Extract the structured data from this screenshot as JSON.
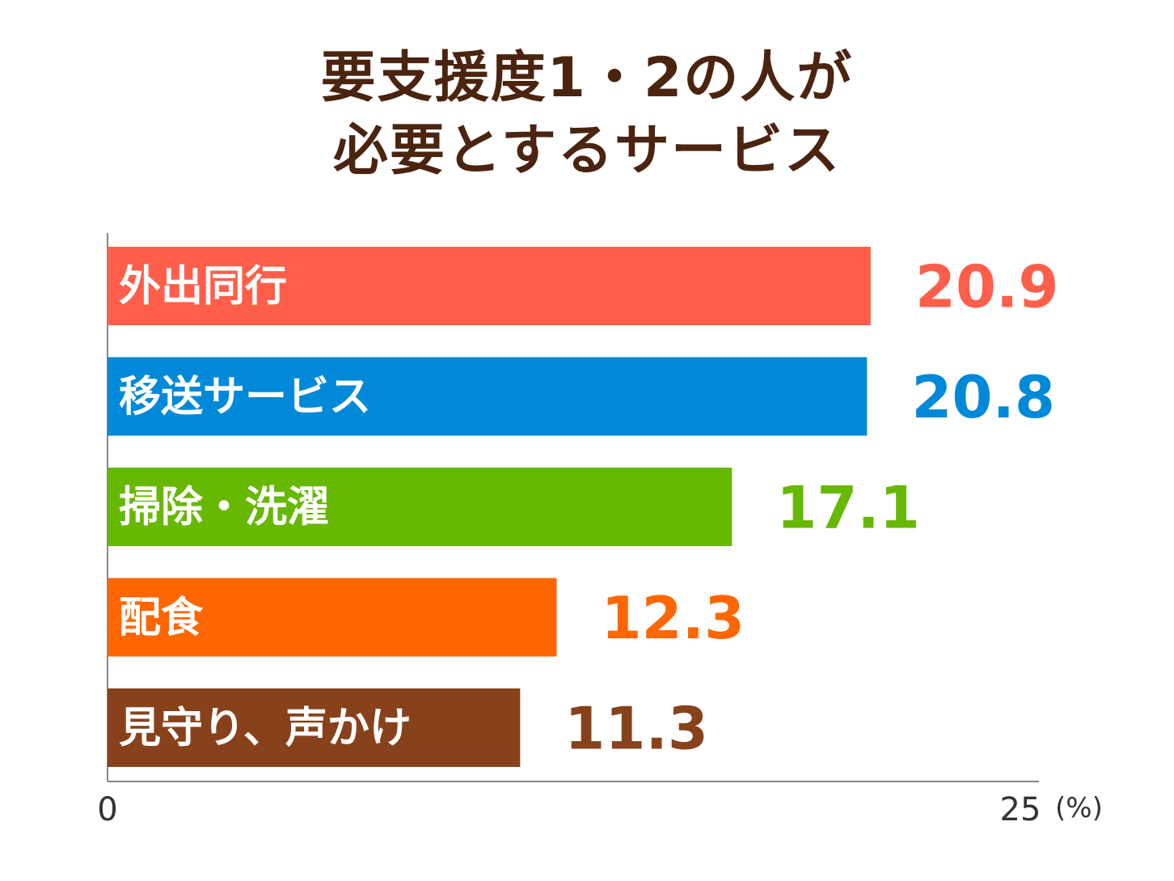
{
  "title": {
    "line1": "要支援度1・2の人が",
    "line2": "必要とするサービス"
  },
  "chart_data": {
    "type": "bar",
    "orientation": "horizontal",
    "title": "要支援度1・2の人が必要とするサービス",
    "categories": [
      "外出同行",
      "移送サービス",
      "掃除・洗濯",
      "配食",
      "見守り、声かけ"
    ],
    "values": [
      20.9,
      20.8,
      17.1,
      12.3,
      11.3
    ],
    "value_labels": [
      "20.9",
      "20.8",
      "17.1",
      "12.3",
      "11.3"
    ],
    "colors": [
      "#ff5e4b",
      "#0089d8",
      "#66b800",
      "#ff6600",
      "#87421c"
    ],
    "xlim": [
      0,
      25
    ],
    "x_ticks": [
      "0",
      "25"
    ],
    "unit": "(%)",
    "grid": false,
    "legend": "none"
  }
}
